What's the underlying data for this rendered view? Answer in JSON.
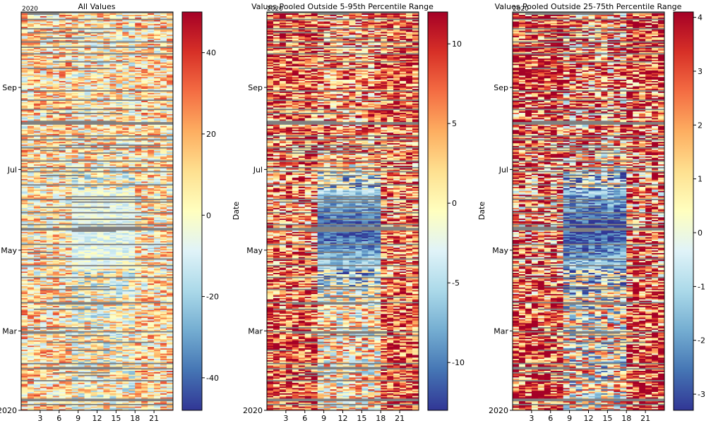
{
  "chart_data": [
    {
      "type": "heatmap",
      "title": "All Values",
      "xlabel": "",
      "ylabel": "",
      "x_ticks": [
        3,
        6,
        9,
        12,
        15,
        18,
        21
      ],
      "x_range": [
        0,
        24
      ],
      "y_range": [
        "2020-01-01",
        "2020-10-28"
      ],
      "y_ticks": [
        "2020",
        "Mar",
        "May",
        "Jul",
        "Sep"
      ],
      "y_top_label": "2020",
      "colorbar": {
        "min": -48,
        "max": 50,
        "ticks": [
          40,
          20,
          0,
          -20,
          -40
        ],
        "colormap": "RdYlBu_r"
      },
      "pattern": {
        "center_value": -10,
        "edge_value": 10,
        "noise": 28,
        "center_band_hours": [
          7.5,
          18
        ],
        "center_months": [
          "Apr",
          "Jun"
        ]
      }
    },
    {
      "type": "heatmap",
      "title": "Values Pooled Outside 5-95th Percentile Range",
      "xlabel": "",
      "ylabel": "Date",
      "x_ticks": [
        3,
        6,
        9,
        12,
        15,
        18,
        21
      ],
      "x_range": [
        0,
        24
      ],
      "y_range": [
        "2020-01-01",
        "2020-10-28"
      ],
      "y_ticks": [
        "2020",
        "Mar",
        "May",
        "Jul",
        "Sep"
      ],
      "y_top_label": "2020",
      "colorbar": {
        "min": -13,
        "max": 12,
        "ticks": [
          10,
          5,
          0,
          -5,
          -10
        ],
        "colormap": "RdYlBu_r"
      },
      "pattern": {
        "center_value": -12,
        "edge_value": 8,
        "noise": 9,
        "center_band_hours": [
          7.5,
          18
        ],
        "center_months": [
          "Apr",
          "Jun"
        ]
      }
    },
    {
      "type": "heatmap",
      "title": "Values Pooled Outside 25-75th Percentile Range",
      "xlabel": "",
      "ylabel": "Date",
      "x_ticks": [
        3,
        6,
        9,
        12,
        15,
        18,
        21
      ],
      "x_range": [
        0,
        24
      ],
      "y_range": [
        "2020-01-01",
        "2020-10-28"
      ],
      "y_ticks": [
        "2020",
        "Mar",
        "May",
        "Jul",
        "Sep"
      ],
      "y_top_label": "2020",
      "colorbar": {
        "min": -3.3,
        "max": 4.1,
        "ticks": [
          4,
          3,
          2,
          1,
          0,
          -1,
          -2,
          -3
        ],
        "colormap": "RdYlBu_r"
      },
      "pattern": {
        "center_value": -3.3,
        "edge_value": 3.5,
        "noise": 3.5,
        "center_band_hours": [
          7.5,
          18
        ],
        "center_months": [
          "Apr",
          "Jun"
        ]
      }
    }
  ],
  "colors": {
    "missing": "#808080",
    "axis": "#000000",
    "background": "#ffffff"
  }
}
